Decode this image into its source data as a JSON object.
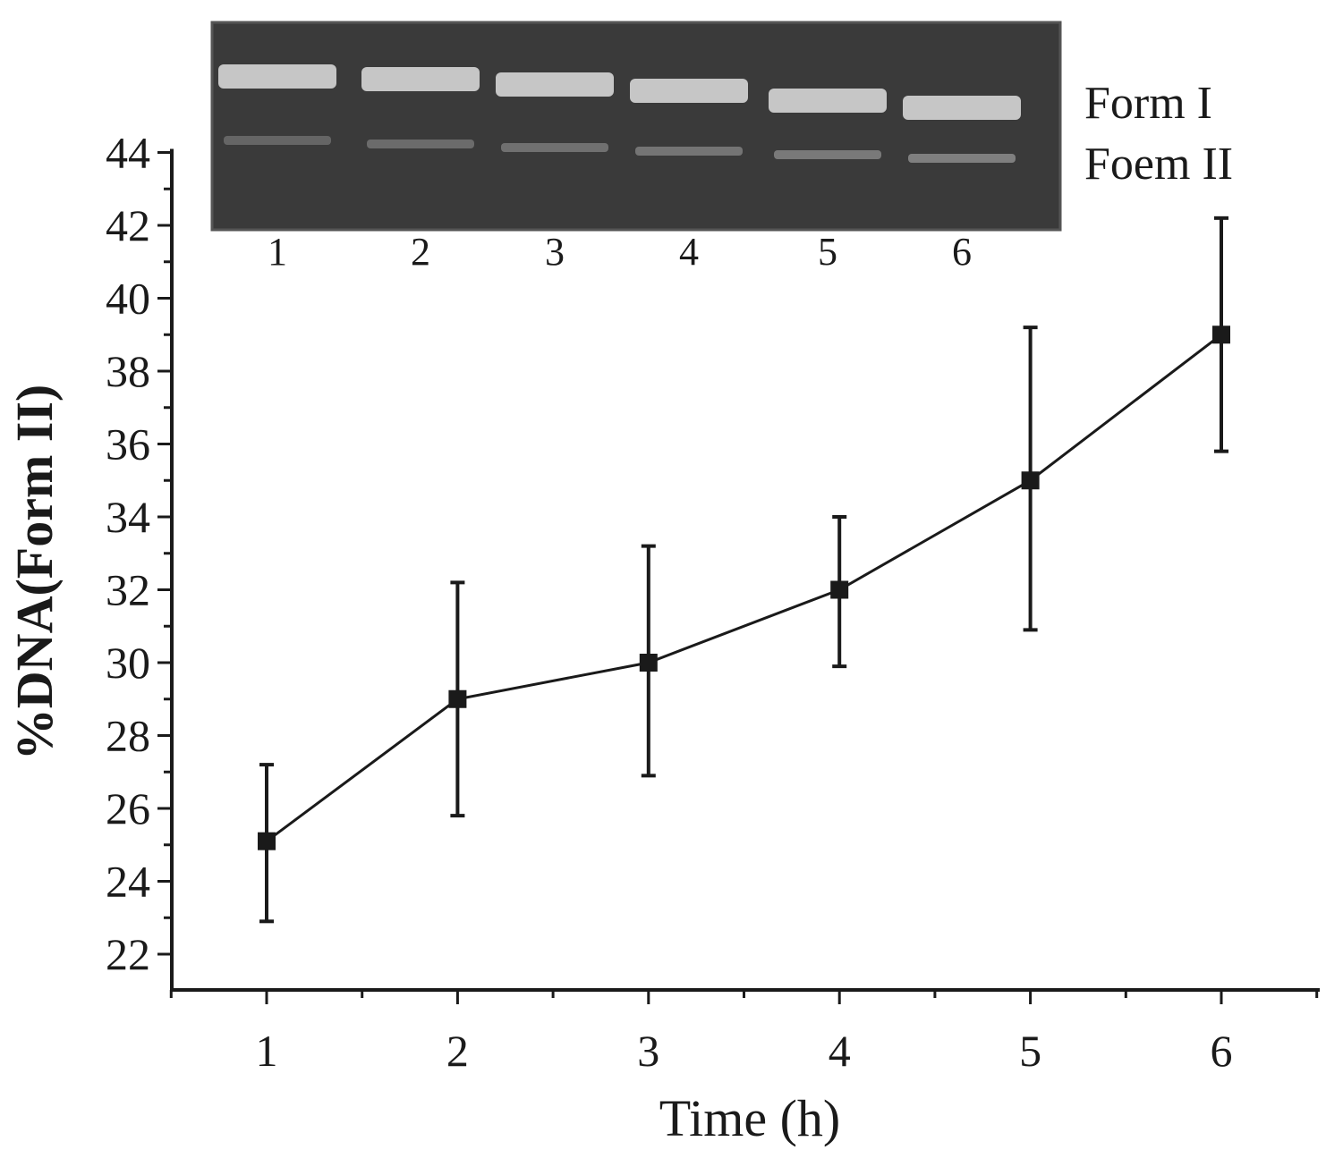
{
  "chart_data": {
    "type": "line",
    "xlabel": "Time (h)",
    "ylabel": "%DNA(Form II)",
    "xlim": [
      0.5,
      6.5
    ],
    "ylim": [
      21,
      44
    ],
    "x_ticks": [
      "1",
      "2",
      "3",
      "4",
      "5",
      "6"
    ],
    "y_ticks": [
      "22",
      "24",
      "26",
      "28",
      "30",
      "32",
      "34",
      "36",
      "38",
      "40",
      "42",
      "44"
    ],
    "series": [
      {
        "x": [
          1,
          2,
          3,
          4,
          5,
          6
        ],
        "values": [
          25.1,
          29.0,
          30.0,
          32.0,
          35.0,
          39.0
        ],
        "error_upper": [
          27.2,
          32.2,
          33.2,
          34.0,
          39.2,
          42.2
        ],
        "error_lower": [
          22.9,
          25.8,
          26.9,
          29.9,
          30.9,
          35.8
        ]
      }
    ],
    "gel_inset": {
      "lane_labels": [
        "1",
        "2",
        "3",
        "4",
        "5",
        "6"
      ],
      "band_labels": [
        "Form I",
        "Foem II"
      ]
    },
    "colors": {
      "line": "#1a1a1a",
      "gel_background": "#3a3a3a",
      "gel_band": "#d9d9d9"
    }
  }
}
